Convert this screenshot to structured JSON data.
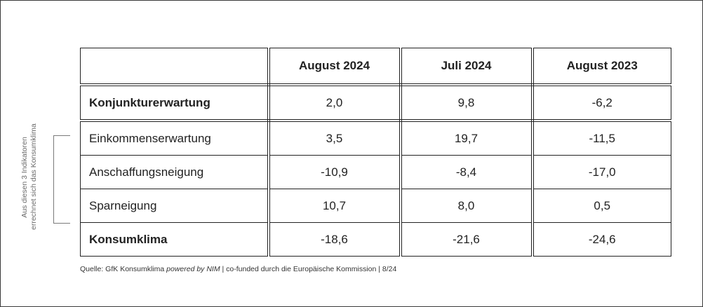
{
  "side_label": {
    "line1": "Aus diesen 3 Indikatoren",
    "line2": "errechnet sich das Konsumklima"
  },
  "table": {
    "columns": [
      "",
      "August 2024",
      "Juli 2024",
      "August 2023"
    ],
    "rows": [
      {
        "label": "Konjunkturerwartung",
        "values": [
          "2,0",
          "9,8",
          "-6,2"
        ]
      },
      {
        "label": "Einkommenserwartung",
        "values": [
          "3,5",
          "19,7",
          "-11,5"
        ]
      },
      {
        "label": "Anschaffungsneigung",
        "values": [
          "-10,9",
          "-8,4",
          "-17,0"
        ]
      },
      {
        "label": "Sparneigung",
        "values": [
          "10,7",
          "8,0",
          "0,5"
        ]
      },
      {
        "label": "Konsumklima",
        "values": [
          "-18,6",
          "-21,6",
          "-24,6"
        ]
      }
    ]
  },
  "source": {
    "prefix": "Quelle: GfK Konsumklima ",
    "emphasis": "powered by NIM",
    "suffix": " | co-funded durch die Europäische Kommission | 8/24"
  }
}
